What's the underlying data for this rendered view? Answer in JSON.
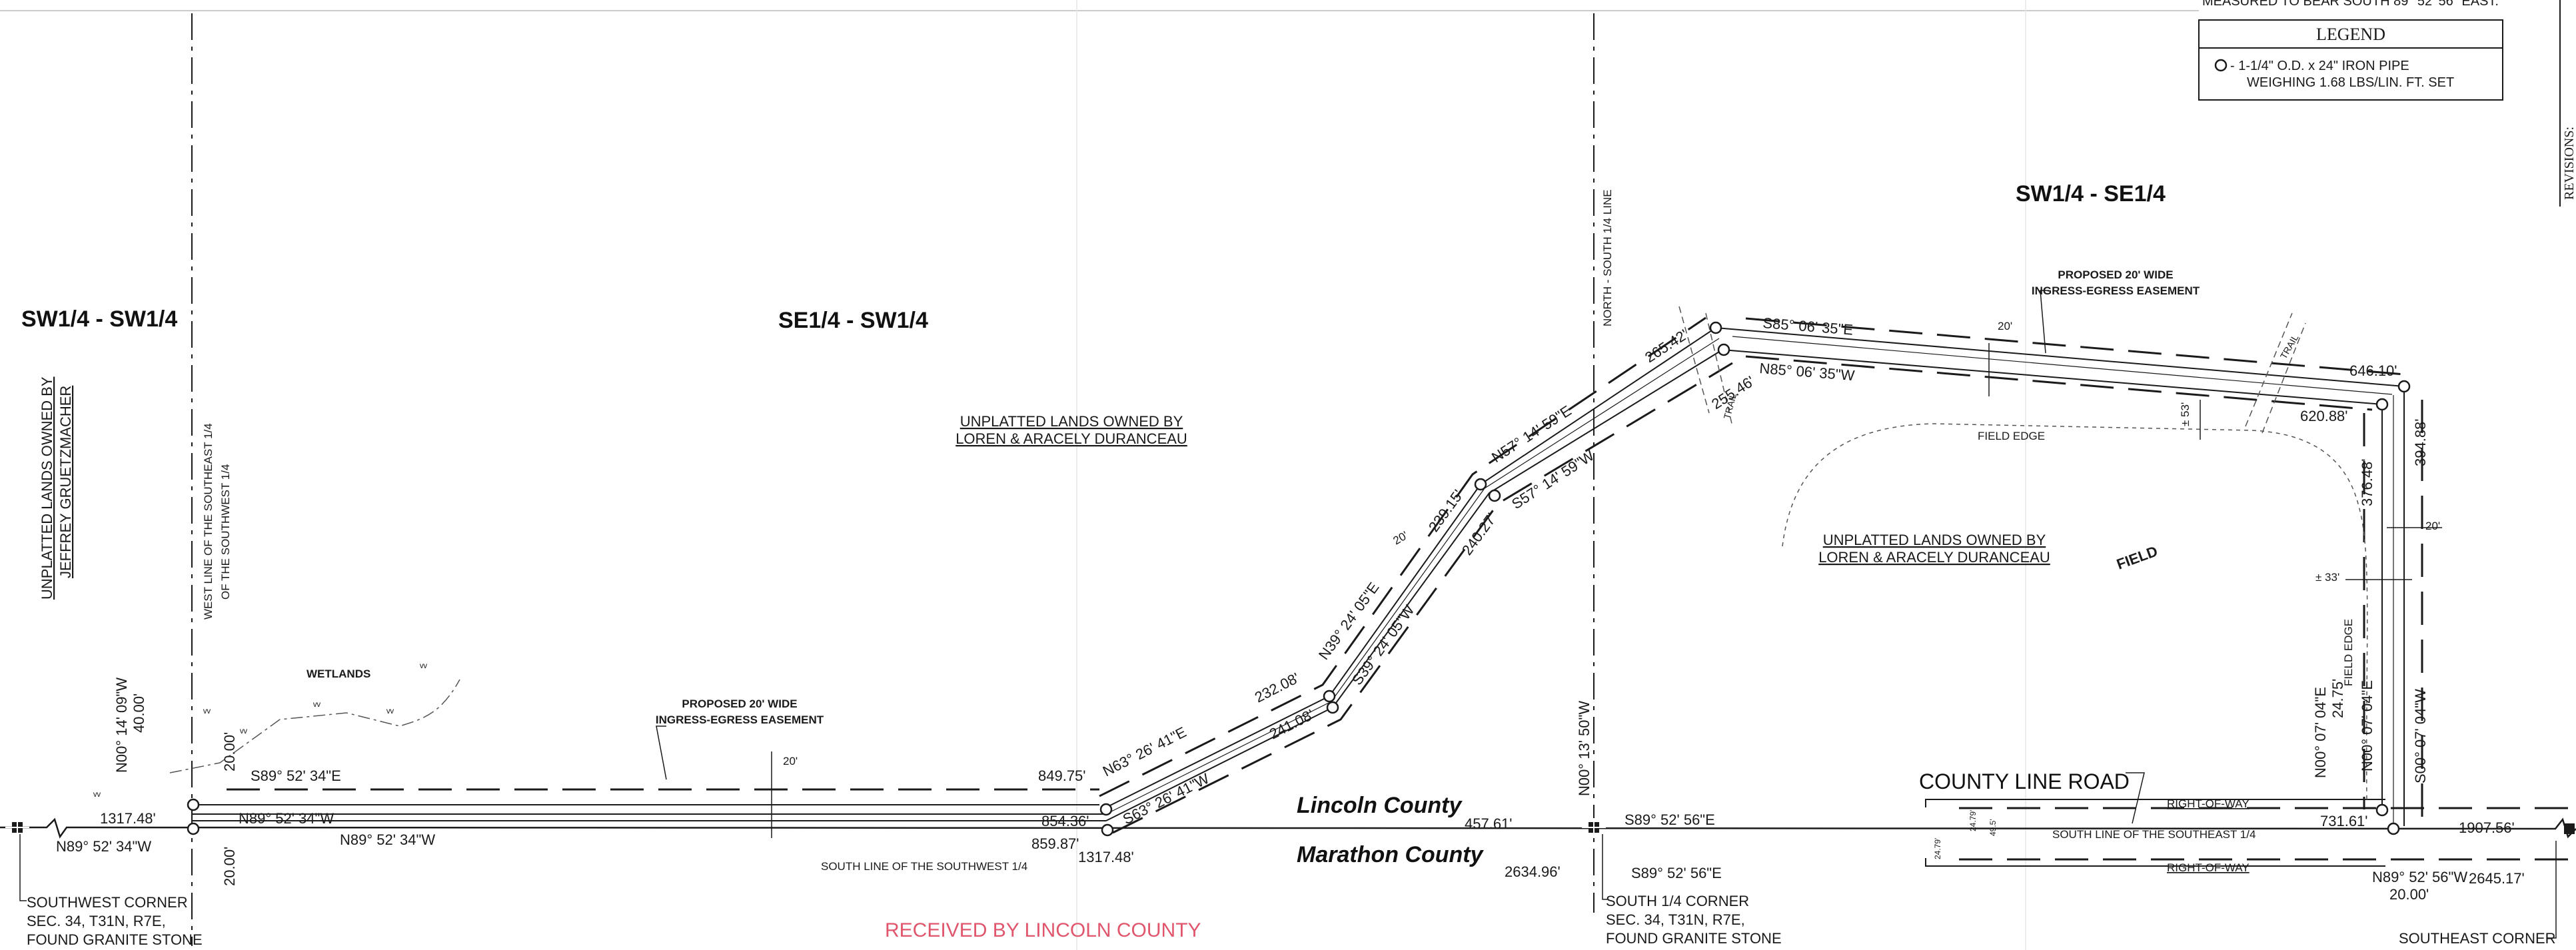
{
  "header_text": "MEASURED TO BEAR SOUTH 89° 52' 56\" EAST.",
  "legend": {
    "title": "LEGEND",
    "line1": "- 1-1/4\" O.D. x 24\" IRON PIPE",
    "line2": "WEIGHING 1.68 LBS/LIN. FT. SET"
  },
  "revisions_label": "REVISIONS:",
  "quarters": {
    "sw_sw": "SW1/4 - SW1/4",
    "se_sw": "SE1/4 - SW1/4",
    "sw_se": "SW1/4 - SE1/4"
  },
  "owners": {
    "west": [
      "UNPLATTED LANDS OWNED BY",
      "JEFFREY GRUETZMACHER"
    ],
    "center": [
      "UNPLATTED LANDS OWNED BY",
      "LOREN & ARACELY DURANCEAU"
    ],
    "east": [
      "UNPLATTED LANDS OWNED BY",
      "LOREN & ARACELY DURANCEAU"
    ]
  },
  "line_labels": {
    "west_line": [
      "WEST LINE OF THE SOUTHEAST 1/4",
      "OF THE SOUTHWEST 1/4"
    ],
    "north_south": "NORTH - SOUTH 1/4 LINE",
    "south_line_sw": "SOUTH LINE OF THE SOUTHWEST 1/4",
    "south_line_se": "SOUTH LINE OF THE SOUTHEAST 1/4",
    "row_top": "RIGHT-OF-WAY",
    "row_bottom": "RIGHT-OF-WAY"
  },
  "wetlands": "WETLANDS",
  "field": "FIELD",
  "field_edge_top": "FIELD EDGE",
  "field_edge_right": "FIELD EDGE",
  "trail_1": "TRAIL",
  "trail_2": "TRAIL",
  "easement_west": [
    "PROPOSED 20' WIDE",
    "INGRESS-EGRESS EASEMENT"
  ],
  "easement_east": [
    "PROPOSED 20' WIDE",
    "INGRESS-EGRESS EASEMENT"
  ],
  "width_20": "20'",
  "approx_53": "± 53'",
  "approx_33": "± 33'",
  "county_line_road": "COUNTY LINE ROAD",
  "lincoln_county": "Lincoln County",
  "marathon_county": "Marathon County",
  "received": "RECEIVED BY LINCOLN COUNTY",
  "row_24_1": "24.79'",
  "row_24_2": "24.79'",
  "row_49": "49.5'",
  "corners": {
    "sw": [
      "SOUTHWEST CORNER",
      "SEC. 34, T31N, R7E,",
      "FOUND GRANITE STONE"
    ],
    "s14": [
      "SOUTH 1/4 CORNER",
      "SEC. 34, T31N, R7E,",
      "FOUND GRANITE STONE"
    ],
    "se": [
      "SOUTHEAST CORNER"
    ]
  },
  "courses": {
    "n00_14": [
      "N00° 14' 09\"W",
      "40.00'"
    ],
    "s89_52_34e": "S89° 52' 34\"E",
    "n89_52_34w_a": "N89° 52' 34\"W",
    "n89_52_34w_b": "N89° 52' 34\"W",
    "n89_52_34w_c": "N89° 52' 34\"W",
    "d1317_48a": "1317.48'",
    "d1317_48b": "1317.48'",
    "d20_00a": "20.00'",
    "d20_00b": "20.00'",
    "d849_75": "849.75'",
    "d854_36": "854.36'",
    "d859_87": "859.87'",
    "n63": "N63° 26' 41\"E",
    "s63": "S63° 26' 41\"W",
    "d232_08": "232.08'",
    "d241_08": "241.08'",
    "n39": "N39° 24' 05\"E",
    "s39": "S39° 24' 05\"W",
    "d239_15": "239.15'",
    "d240_27": "240.27'",
    "n57": "N57° 14' 59\"E",
    "s57": "S57° 14' 59\"W",
    "d265_42": "265.42'",
    "d255_46": "255.46'",
    "s85": "S85° 06' 35\"E",
    "n85": "N85° 06' 35\"W",
    "d646_10": "646.10'",
    "d620_88": "620.88'",
    "d394_88": "394.88'",
    "d376_48": "376.48'",
    "n00_07_a": [
      "N00° 07' 04\"E",
      "24.75'"
    ],
    "n00_07_b": "N00° 07' 04\"E",
    "s00_07": "S00° 07' 04\"W",
    "d731_61": "731.61'",
    "d1907_56": "1907.56'",
    "n89_52_56w": [
      "N89° 52' 56\"W",
      "20.00'"
    ],
    "d2645_17": "2645.17'",
    "d457_61": "457.61'",
    "s89_52_56e_a": "S89° 52' 56\"E",
    "s89_52_56e_b": "S89° 52' 56\"E",
    "d2634_96": "2634.96'",
    "n00_13": "N00° 13' 50\"W"
  },
  "colors": {
    "ink": "#1a1a1a",
    "stamp": "#e0566d"
  }
}
